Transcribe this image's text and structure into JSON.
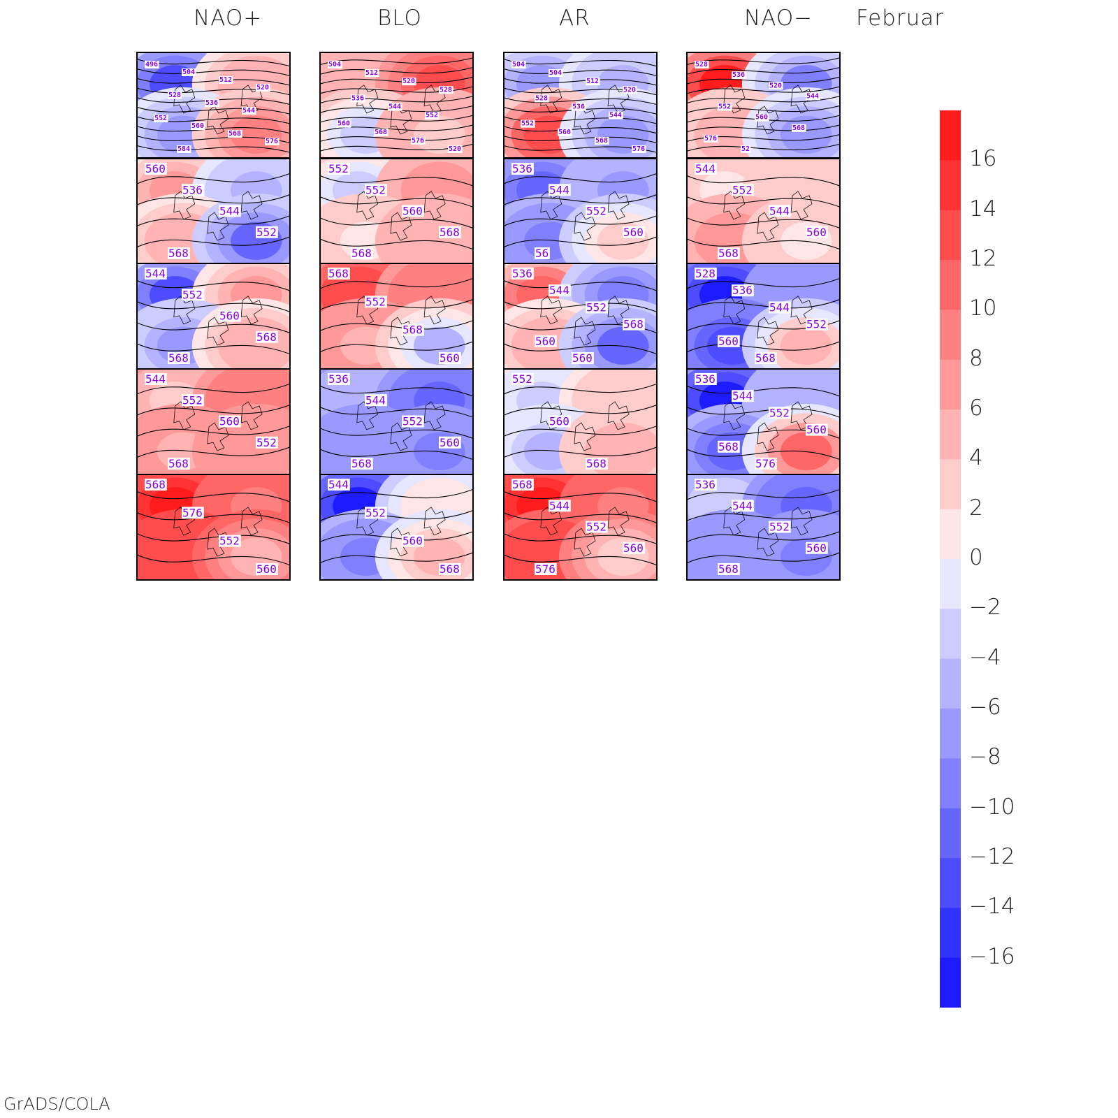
{
  "columns": [
    "NAO+",
    "BLO",
    "AR",
    "NAO−"
  ],
  "month": "Februar",
  "footer": "GrADS/COLA",
  "colorbar": {
    "labels": [
      "16",
      "14",
      "12",
      "10",
      "8",
      "6",
      "4",
      "2",
      "0",
      "−2",
      "−4",
      "−6",
      "−8",
      "−10",
      "−12",
      "−14",
      "−16"
    ],
    "colors": [
      "#ff1c1c",
      "#ff3333",
      "#ff4d4d",
      "#ff6666",
      "#ff8080",
      "#ff9999",
      "#ffb3b3",
      "#ffcccc",
      "#ffe6e6",
      "#e6e6ff",
      "#ccccff",
      "#b3b3ff",
      "#9999ff",
      "#8080ff",
      "#6666ff",
      "#4d4dff",
      "#3333ff",
      "#1c1cff"
    ]
  },
  "panels": [
    [
      {
        "fill": [
          -12,
          6,
          -6,
          10
        ],
        "labels": [
          "496",
          "504",
          "512",
          "520",
          "528",
          "536",
          "544",
          "552",
          "560",
          "568",
          "576",
          "584"
        ],
        "small": true
      },
      {
        "fill": [
          8,
          -4,
          6,
          -10
        ],
        "labels": [
          "560",
          "536",
          "544",
          "552",
          "568"
        ]
      },
      {
        "fill": [
          -12,
          8,
          -6,
          6
        ],
        "labels": [
          "544",
          "552",
          "560",
          "568",
          "568"
        ]
      },
      {
        "fill": [
          4,
          10,
          6,
          8
        ],
        "labels": [
          "544",
          "552",
          "560",
          "552",
          "568"
        ]
      },
      {
        "fill": [
          16,
          10,
          14,
          6
        ],
        "labels": [
          "568",
          "576",
          "552",
          "560"
        ]
      }
    ],
    [
      {
        "fill": [
          6,
          14,
          -2,
          4
        ],
        "labels": [
          "504",
          "512",
          "520",
          "528",
          "536",
          "544",
          "552",
          "560",
          "568",
          "576",
          "520"
        ],
        "small": true
      },
      {
        "fill": [
          -2,
          8,
          2,
          6
        ],
        "labels": [
          "552",
          "552",
          "560",
          "568",
          "568"
        ]
      },
      {
        "fill": [
          14,
          10,
          6,
          -4
        ],
        "labels": [
          "568",
          "552",
          "568",
          "560"
        ]
      },
      {
        "fill": [
          -4,
          -10,
          -6,
          -8
        ],
        "labels": [
          "536",
          "544",
          "552",
          "560",
          "568"
        ]
      },
      {
        "fill": [
          -16,
          2,
          -8,
          6
        ],
        "labels": [
          "544",
          "552",
          "560",
          "568"
        ]
      }
    ],
    [
      {
        "fill": [
          -6,
          -4,
          14,
          -6
        ],
        "labels": [
          "504",
          "504",
          "512",
          "520",
          "528",
          "536",
          "544",
          "552",
          "560",
          "568",
          "576"
        ],
        "small": true
      },
      {
        "fill": [
          -10,
          -6,
          -8,
          4
        ],
        "labels": [
          "536",
          "544",
          "552",
          "560",
          "56"
        ]
      },
      {
        "fill": [
          12,
          -8,
          6,
          -10
        ],
        "labels": [
          "536",
          "544",
          "552",
          "568",
          "560",
          "560"
        ]
      },
      {
        "fill": [
          -2,
          4,
          -4,
          6
        ],
        "labels": [
          "552",
          "560",
          "568"
        ]
      },
      {
        "fill": [
          16,
          10,
          14,
          4
        ],
        "labels": [
          "568",
          "544",
          "552",
          "560",
          "576"
        ]
      }
    ],
    [
      {
        "fill": [
          16,
          -8,
          6,
          -6
        ],
        "labels": [
          "528",
          "536",
          "520",
          "544",
          "552",
          "560",
          "568",
          "576",
          "52"
        ],
        "small": true
      },
      {
        "fill": [
          2,
          4,
          8,
          2
        ],
        "labels": [
          "544",
          "552",
          "544",
          "560",
          "568"
        ]
      },
      {
        "fill": [
          -16,
          -6,
          -12,
          6
        ],
        "labels": [
          "528",
          "536",
          "544",
          "552",
          "560",
          "568"
        ]
      },
      {
        "fill": [
          -16,
          -4,
          -10,
          12
        ],
        "labels": [
          "536",
          "544",
          "552",
          "560",
          "568",
          "576"
        ]
      },
      {
        "fill": [
          -2,
          -10,
          -6,
          -8
        ],
        "labels": [
          "536",
          "544",
          "552",
          "560",
          "568"
        ]
      }
    ]
  ]
}
